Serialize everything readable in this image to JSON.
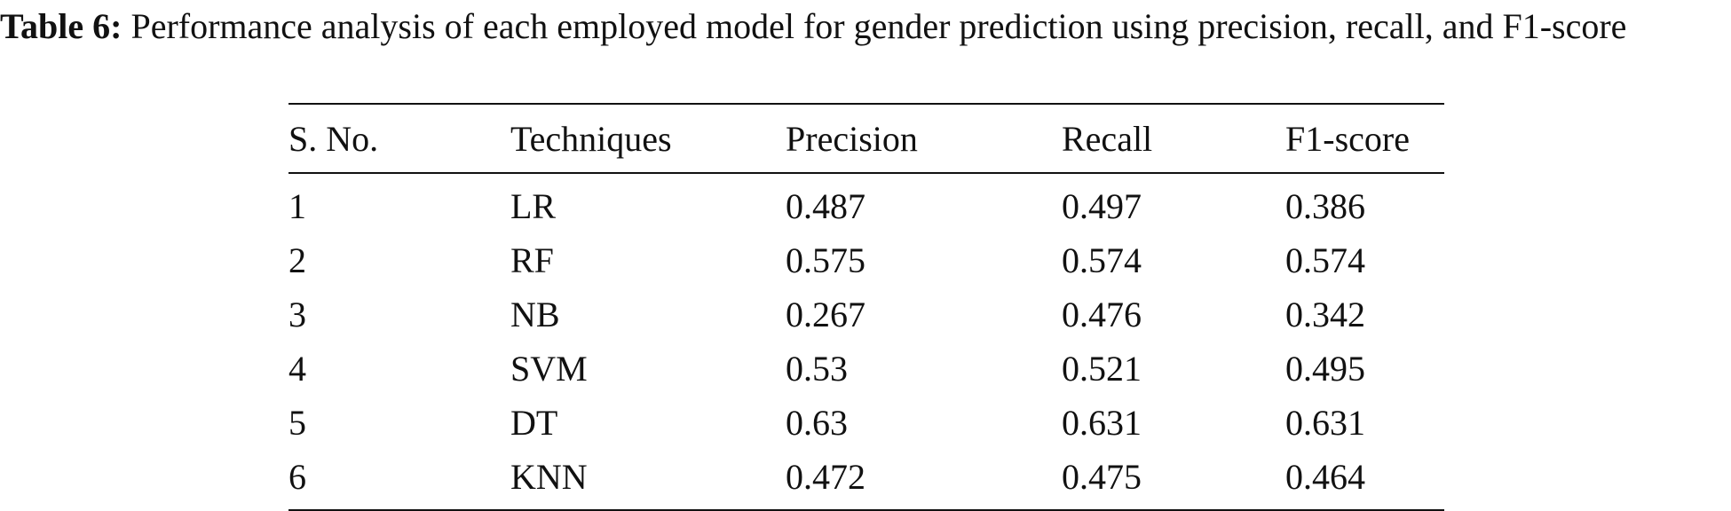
{
  "caption": {
    "label": "Table 6:",
    "text": " Performance analysis of each employed model for gender prediction using precision, recall, and F1-score"
  },
  "table": {
    "headers": [
      "S. No.",
      "Techniques",
      "Precision",
      "Recall",
      "F1-score"
    ],
    "rows": [
      [
        "1",
        "LR",
        "0.487",
        "0.497",
        "0.386"
      ],
      [
        "2",
        "RF",
        "0.575",
        "0.574",
        "0.574"
      ],
      [
        "3",
        "NB",
        "0.267",
        "0.476",
        "0.342"
      ],
      [
        "4",
        "SVM",
        "0.53",
        "0.521",
        "0.495"
      ],
      [
        "5",
        "DT",
        "0.63",
        "0.631",
        "0.631"
      ],
      [
        "6",
        "KNN",
        "0.472",
        "0.475",
        "0.464"
      ]
    ]
  }
}
